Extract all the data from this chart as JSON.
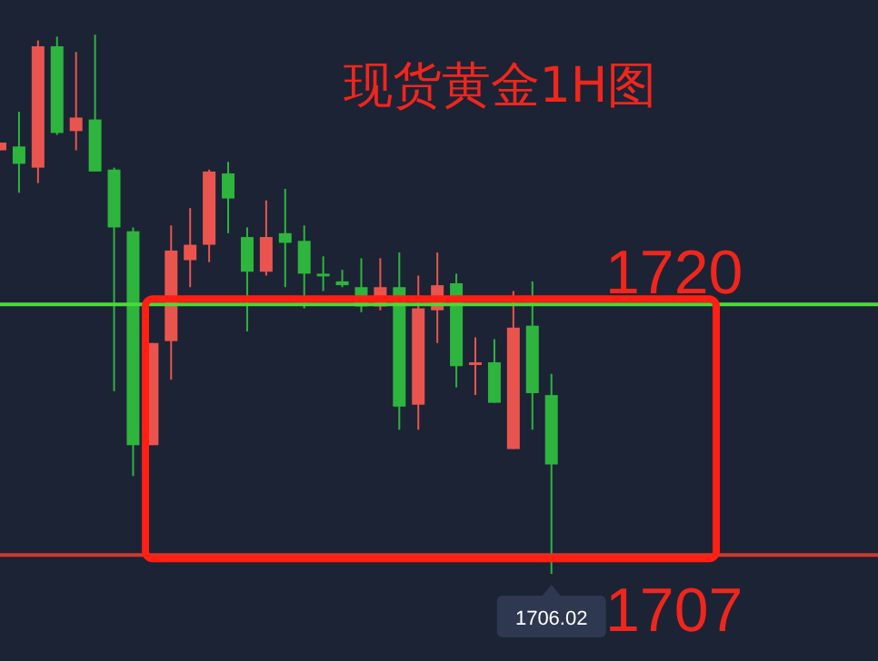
{
  "chart_data": {
    "type": "candlestick",
    "title": "现货黄金1H图",
    "categories": [
      null,
      null,
      null,
      null,
      null,
      null,
      null,
      null,
      null,
      null,
      null,
      null,
      null,
      null,
      null,
      null,
      null,
      null,
      null,
      null,
      null,
      null,
      null,
      null,
      null,
      null,
      null,
      null,
      null,
      null
    ],
    "ohlc": [
      [
        1728.0,
        1728.4,
        1728.0,
        1728.4
      ],
      [
        1728.2,
        1730.0,
        1725.8,
        1727.3
      ],
      [
        1727.1,
        1733.7,
        1726.3,
        1733.4
      ],
      [
        1733.4,
        1733.9,
        1728.8,
        1728.9
      ],
      [
        1729.0,
        1733.1,
        1728.0,
        1729.7
      ],
      [
        1729.6,
        1734.0,
        1726.9,
        1726.9
      ],
      [
        1727.0,
        1727.1,
        1715.5,
        1724.0
      ],
      [
        1723.8,
        1724.0,
        1711.1,
        1712.7
      ],
      [
        1712.7,
        1718.0,
        1712.7,
        1718.0
      ],
      [
        1718.1,
        1724.1,
        1716.1,
        1722.8
      ],
      [
        1722.3,
        1725.0,
        1720.9,
        1723.1
      ],
      [
        1723.1,
        1727.0,
        1722.2,
        1726.9
      ],
      [
        1726.8,
        1727.4,
        1723.7,
        1725.5
      ],
      [
        1723.5,
        1724.0,
        1718.6,
        1721.7
      ],
      [
        1721.7,
        1725.4,
        1721.5,
        1723.5
      ],
      [
        1723.7,
        1726.0,
        1720.9,
        1723.2
      ],
      [
        1723.3,
        1724.1,
        1719.8,
        1721.6
      ],
      [
        1721.6,
        1722.5,
        1720.7,
        1721.5
      ],
      [
        1721.2,
        1721.8,
        1720.9,
        1721.0
      ],
      [
        1720.9,
        1722.4,
        1719.6,
        1719.9
      ],
      [
        1719.9,
        1722.4,
        1719.7,
        1720.9
      ],
      [
        1720.9,
        1722.7,
        1713.5,
        1714.7
      ],
      [
        1714.8,
        1721.5,
        1713.5,
        1719.8
      ],
      [
        1719.7,
        1722.7,
        1718.0,
        1721.0
      ],
      [
        1721.1,
        1721.6,
        1715.7,
        1716.8
      ],
      [
        1716.9,
        1718.3,
        1715.3,
        1717.0
      ],
      [
        1717.0,
        1718.2,
        1714.9,
        1714.9
      ],
      [
        1712.5,
        1720.7,
        1712.5,
        1718.8
      ],
      [
        1718.9,
        1721.2,
        1713.5,
        1715.4
      ],
      [
        1715.3,
        1716.4,
        1706.02,
        1711.7
      ]
    ],
    "colors": [
      "#e9554e",
      "#2db53e",
      "#e9554e",
      "#2db53e",
      "#e9554e",
      "#2db53e",
      "#2db53e",
      "#2db53e",
      "#e9554e",
      "#e9554e",
      "#e9554e",
      "#e9554e",
      "#2db53e",
      "#2db53e",
      "#e9554e",
      "#2db53e",
      "#2db53e",
      "#2db53e",
      "#2db53e",
      "#2db53e",
      "#e9554e",
      "#2db53e",
      "#e9554e",
      "#e9554e",
      "#2db53e",
      "#e9554e",
      "#2db53e",
      "#e9554e",
      "#2db53e",
      "#2db53e"
    ],
    "ylim": [
      1701.5,
      1735.8
    ],
    "ref_lines": [
      {
        "axis": "y",
        "value": 1720,
        "label": "1720",
        "color": "#4cd93a"
      },
      {
        "axis": "y",
        "value": 1707,
        "label": "1707",
        "color": "#d0392c"
      }
    ],
    "annotations": [
      {
        "text": "1706.02",
        "y": 1706.02
      }
    ]
  }
}
